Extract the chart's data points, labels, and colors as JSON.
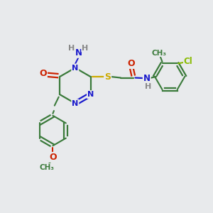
{
  "background_color": "#e8eaec",
  "atom_colors": {
    "C": "#3a7a3a",
    "N": "#1a1acc",
    "O": "#cc2200",
    "S": "#ccaa00",
    "Cl": "#88bb00",
    "H": "#888888"
  },
  "bond_color": "#3a7a3a",
  "figsize": [
    3.0,
    3.0
  ],
  "dpi": 100
}
